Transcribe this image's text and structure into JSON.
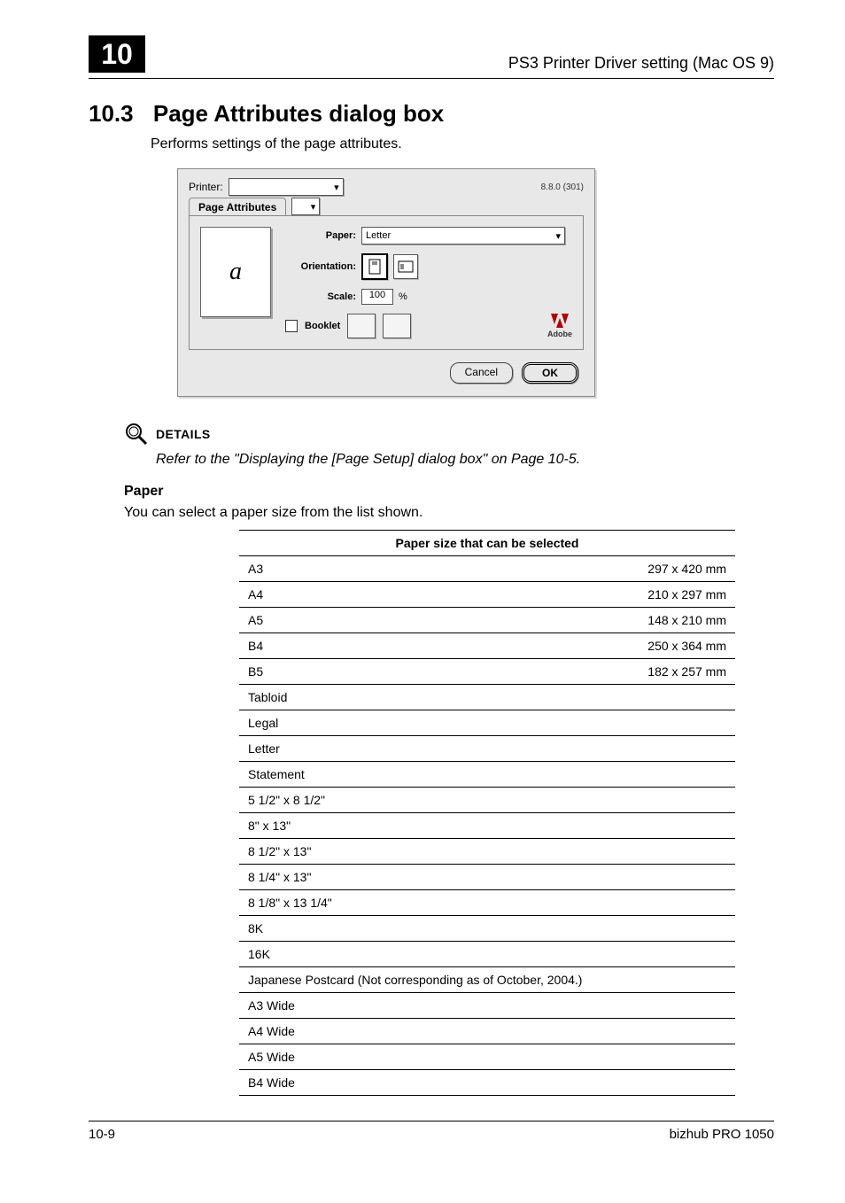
{
  "header": {
    "chapter_number": "10",
    "page_header_title": "PS3 Printer Driver setting (Mac OS 9)"
  },
  "section": {
    "number": "10.3",
    "title": "Page Attributes dialog box",
    "subtitle": "Performs settings of the page attributes."
  },
  "dialog": {
    "printer_label": "Printer:",
    "version_text": "8.8.0 (301)",
    "tab_label": "Page Attributes",
    "preview_glyph": "a",
    "paper_label": "Paper:",
    "paper_value": "Letter",
    "orientation_label": "Orientation:",
    "scale_label": "Scale:",
    "scale_value": "100",
    "scale_unit": "%",
    "booklet_label": "Booklet",
    "adobe_label": "Adobe",
    "cancel_label": "Cancel",
    "ok_label": "OK",
    "dropdown_arrow": "▾",
    "updown_arrow": "◂▸"
  },
  "details": {
    "heading": "DETAILS",
    "text": "Refer to the \"Displaying the [Page Setup] dialog box\" on Page 10-5."
  },
  "paper_section": {
    "heading": "Paper",
    "description": "You can select a paper size from the list shown.",
    "table_header": "Paper size that can be selected",
    "rows": [
      {
        "name": "A3",
        "dim": "297 x 420 mm"
      },
      {
        "name": "A4",
        "dim": "210 x 297 mm"
      },
      {
        "name": "A5",
        "dim": "148 x 210 mm"
      },
      {
        "name": "B4",
        "dim": "250 x 364 mm"
      },
      {
        "name": "B5",
        "dim": "182 x 257 mm"
      },
      {
        "name": "Tabloid",
        "dim": ""
      },
      {
        "name": "Legal",
        "dim": ""
      },
      {
        "name": "Letter",
        "dim": ""
      },
      {
        "name": "Statement",
        "dim": ""
      },
      {
        "name": "5 1/2\" x 8 1/2\"",
        "dim": ""
      },
      {
        "name": "8\" x 13\"",
        "dim": ""
      },
      {
        "name": "8 1/2\" x 13\"",
        "dim": ""
      },
      {
        "name": "8 1/4\" x 13\"",
        "dim": ""
      },
      {
        "name": "8 1/8\" x 13 1/4\"",
        "dim": ""
      },
      {
        "name": "8K",
        "dim": ""
      },
      {
        "name": "16K",
        "dim": ""
      },
      {
        "name": "Japanese Postcard (Not corresponding as of October, 2004.)",
        "dim": ""
      },
      {
        "name": "A3 Wide",
        "dim": ""
      },
      {
        "name": "A4 Wide",
        "dim": ""
      },
      {
        "name": "A5 Wide",
        "dim": ""
      },
      {
        "name": "B4 Wide",
        "dim": ""
      }
    ]
  },
  "footer": {
    "page_num": "10-9",
    "product": "bizhub PRO 1050"
  }
}
